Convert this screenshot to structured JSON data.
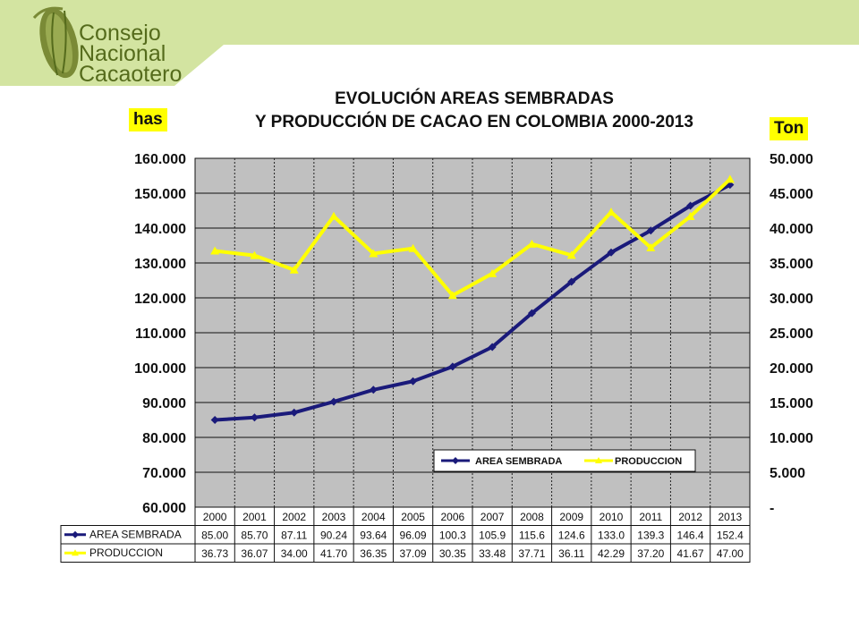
{
  "logo": {
    "lines": [
      "Consejo",
      "Nacional",
      "Cacaotero"
    ],
    "colors": {
      "text": "#556b1c",
      "band": "#d3e4a1",
      "pod": "#7a8a36"
    }
  },
  "chart_data": {
    "type": "line",
    "title_line1": "EVOLUCIÓN AREAS SEMBRADAS",
    "title_line2": "Y PRODUCCIÓN DE CACAO EN COLOMBIA 2000-2013",
    "left_unit": "has",
    "right_unit": "Ton",
    "categories": [
      "2000",
      "2001",
      "2002",
      "2003",
      "2004",
      "2005",
      "2006",
      "2007",
      "2008",
      "2009",
      "2010",
      "2011",
      "2012",
      "2013"
    ],
    "left_ylim": [
      60000,
      160000
    ],
    "left_ticks": [
      "60.000",
      "70.000",
      "80.000",
      "90.000",
      "100.000",
      "110.000",
      "120.000",
      "130.000",
      "140.000",
      "150.000",
      "160.000"
    ],
    "right_ylim": [
      0,
      50000
    ],
    "right_ticks": [
      "-",
      "5.000",
      "10.000",
      "15.000",
      "20.000",
      "25.000",
      "30.000",
      "35.000",
      "40.000",
      "45.000",
      "50.000"
    ],
    "grid": true,
    "legend_placement": "bottom-right",
    "series": [
      {
        "name": "AREA SEMBRADA",
        "axis": "left",
        "color": "#1a1a7a",
        "values": [
          85000,
          85700,
          87110,
          90240,
          93640,
          96090,
          100300,
          105900,
          115600,
          124600,
          133000,
          139300,
          146400,
          152400
        ],
        "table_values": [
          "85.00",
          "85.70",
          "87.11",
          "90.24",
          "93.64",
          "96.09",
          "100.3",
          "105.9",
          "115.6",
          "124.6",
          "133.0",
          "139.3",
          "146.4",
          "152.4"
        ]
      },
      {
        "name": "PRODUCCION",
        "axis": "right",
        "color": "#ffff00",
        "values": [
          36730,
          36070,
          34000,
          41700,
          36350,
          37090,
          30350,
          33480,
          37710,
          36110,
          42290,
          37200,
          41670,
          47000
        ],
        "table_values": [
          "36.73",
          "36.07",
          "34.00",
          "41.70",
          "36.35",
          "37.09",
          "30.35",
          "33.48",
          "37.71",
          "36.11",
          "42.29",
          "37.20",
          "41.67",
          "47.00"
        ]
      }
    ]
  }
}
